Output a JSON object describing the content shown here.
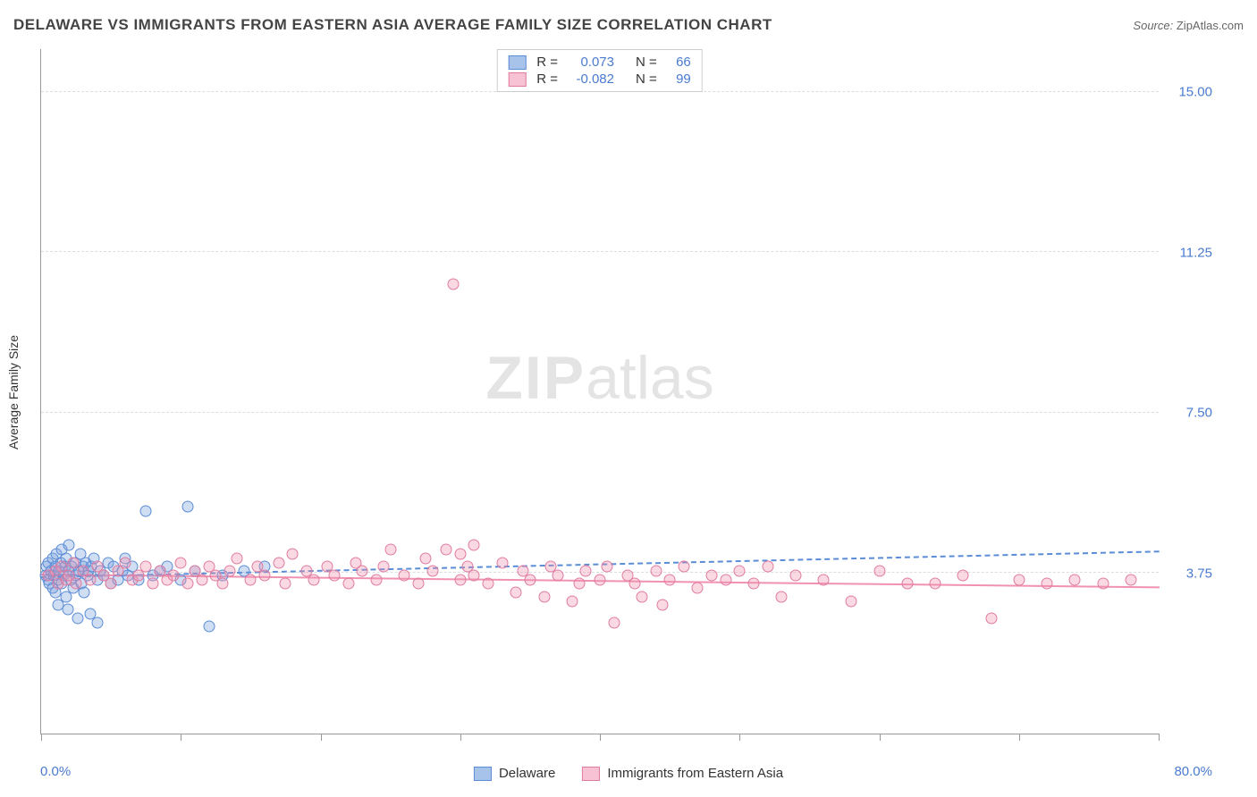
{
  "title": "DELAWARE VS IMMIGRANTS FROM EASTERN ASIA AVERAGE FAMILY SIZE CORRELATION CHART",
  "source_label": "Source:",
  "source_value": "ZipAtlas.com",
  "ylabel": "Average Family Size",
  "watermark_zip": "ZIP",
  "watermark_atlas": "atlas",
  "chart": {
    "type": "scatter",
    "xlim": [
      0,
      80
    ],
    "ylim": [
      0,
      16
    ],
    "xmin_label": "0.0%",
    "xmax_label": "80.0%",
    "yticks": [
      3.75,
      7.5,
      11.25,
      15.0
    ],
    "ytick_labels": [
      "3.75",
      "7.50",
      "11.25",
      "15.00"
    ],
    "xticks": [
      0,
      10,
      20,
      30,
      40,
      50,
      60,
      70,
      80
    ],
    "background_color": "#ffffff",
    "grid_color": "#dddddd",
    "axis_color": "#999999",
    "marker_radius": 6.5,
    "marker_stroke_width": 1.2
  },
  "series": [
    {
      "name": "Delaware",
      "color_fill": "rgba(120,160,220,0.35)",
      "color_stroke": "#5b8cd6",
      "swatch_fill": "#a8c3ea",
      "swatch_border": "#5b8cd6",
      "R": "0.073",
      "N": "66",
      "trend": {
        "y_at_x0": 3.7,
        "y_at_xmax": 4.3,
        "style": "dashed"
      },
      "points": [
        [
          0.3,
          3.7
        ],
        [
          0.4,
          3.9
        ],
        [
          0.5,
          3.6
        ],
        [
          0.5,
          4.0
        ],
        [
          0.6,
          3.5
        ],
        [
          0.7,
          3.8
        ],
        [
          0.8,
          4.1
        ],
        [
          0.8,
          3.4
        ],
        [
          0.9,
          3.7
        ],
        [
          1.0,
          3.9
        ],
        [
          1.0,
          3.3
        ],
        [
          1.1,
          4.2
        ],
        [
          1.2,
          3.6
        ],
        [
          1.2,
          3.0
        ],
        [
          1.3,
          3.8
        ],
        [
          1.4,
          4.0
        ],
        [
          1.5,
          3.5
        ],
        [
          1.5,
          4.3
        ],
        [
          1.6,
          3.7
        ],
        [
          1.7,
          3.9
        ],
        [
          1.8,
          3.2
        ],
        [
          1.8,
          4.1
        ],
        [
          1.9,
          2.9
        ],
        [
          2.0,
          3.8
        ],
        [
          2.0,
          4.4
        ],
        [
          2.1,
          3.6
        ],
        [
          2.2,
          3.9
        ],
        [
          2.3,
          3.4
        ],
        [
          2.4,
          4.0
        ],
        [
          2.5,
          3.7
        ],
        [
          2.6,
          2.7
        ],
        [
          2.7,
          3.8
        ],
        [
          2.8,
          4.2
        ],
        [
          2.9,
          3.5
        ],
        [
          3.0,
          3.9
        ],
        [
          3.1,
          3.3
        ],
        [
          3.2,
          4.0
        ],
        [
          3.3,
          3.7
        ],
        [
          3.4,
          3.8
        ],
        [
          3.5,
          2.8
        ],
        [
          3.6,
          3.9
        ],
        [
          3.8,
          4.1
        ],
        [
          4.0,
          3.6
        ],
        [
          4.0,
          2.6
        ],
        [
          4.2,
          3.8
        ],
        [
          4.5,
          3.7
        ],
        [
          4.8,
          4.0
        ],
        [
          5.0,
          3.5
        ],
        [
          5.2,
          3.9
        ],
        [
          5.5,
          3.6
        ],
        [
          5.8,
          3.8
        ],
        [
          6.0,
          4.1
        ],
        [
          6.2,
          3.7
        ],
        [
          6.5,
          3.9
        ],
        [
          7.0,
          3.6
        ],
        [
          7.5,
          5.2
        ],
        [
          8.0,
          3.7
        ],
        [
          8.5,
          3.8
        ],
        [
          9.0,
          3.9
        ],
        [
          10.0,
          3.6
        ],
        [
          10.5,
          5.3
        ],
        [
          11.0,
          3.8
        ],
        [
          12.0,
          2.5
        ],
        [
          13.0,
          3.7
        ],
        [
          14.5,
          3.8
        ],
        [
          16.0,
          3.9
        ]
      ]
    },
    {
      "name": "Immigrants from Eastern Asia",
      "color_fill": "rgba(240,146,176,0.35)",
      "color_stroke": "#e07ba0",
      "swatch_fill": "#f7c2d3",
      "swatch_border": "#e07ba0",
      "R": "-0.082",
      "N": "99",
      "trend": {
        "y_at_x0": 3.75,
        "y_at_xmax": 3.45,
        "style": "solid"
      },
      "points": [
        [
          0.5,
          3.7
        ],
        [
          1.0,
          3.8
        ],
        [
          1.2,
          3.5
        ],
        [
          1.5,
          3.9
        ],
        [
          1.8,
          3.6
        ],
        [
          2.0,
          3.7
        ],
        [
          2.3,
          4.0
        ],
        [
          2.5,
          3.5
        ],
        [
          3.0,
          3.8
        ],
        [
          3.5,
          3.6
        ],
        [
          4.0,
          3.9
        ],
        [
          4.5,
          3.7
        ],
        [
          5.0,
          3.5
        ],
        [
          5.5,
          3.8
        ],
        [
          6.0,
          4.0
        ],
        [
          6.5,
          3.6
        ],
        [
          7.0,
          3.7
        ],
        [
          7.5,
          3.9
        ],
        [
          8.0,
          3.5
        ],
        [
          8.5,
          3.8
        ],
        [
          9.0,
          3.6
        ],
        [
          9.5,
          3.7
        ],
        [
          10.0,
          4.0
        ],
        [
          10.5,
          3.5
        ],
        [
          11.0,
          3.8
        ],
        [
          11.5,
          3.6
        ],
        [
          12.0,
          3.9
        ],
        [
          12.5,
          3.7
        ],
        [
          13.0,
          3.5
        ],
        [
          13.5,
          3.8
        ],
        [
          14.0,
          4.1
        ],
        [
          15.0,
          3.6
        ],
        [
          15.5,
          3.9
        ],
        [
          16.0,
          3.7
        ],
        [
          17.0,
          4.0
        ],
        [
          17.5,
          3.5
        ],
        [
          18.0,
          4.2
        ],
        [
          19.0,
          3.8
        ],
        [
          19.5,
          3.6
        ],
        [
          20.5,
          3.9
        ],
        [
          21.0,
          3.7
        ],
        [
          22.0,
          3.5
        ],
        [
          22.5,
          4.0
        ],
        [
          23.0,
          3.8
        ],
        [
          24.0,
          3.6
        ],
        [
          24.5,
          3.9
        ],
        [
          25.0,
          4.3
        ],
        [
          26.0,
          3.7
        ],
        [
          27.0,
          3.5
        ],
        [
          27.5,
          4.1
        ],
        [
          28.0,
          3.8
        ],
        [
          29.0,
          4.3
        ],
        [
          29.5,
          10.5
        ],
        [
          30.0,
          3.6
        ],
        [
          30.0,
          4.2
        ],
        [
          30.5,
          3.9
        ],
        [
          31.0,
          3.7
        ],
        [
          31.0,
          4.4
        ],
        [
          32.0,
          3.5
        ],
        [
          33.0,
          4.0
        ],
        [
          34.0,
          3.3
        ],
        [
          34.5,
          3.8
        ],
        [
          35.0,
          3.6
        ],
        [
          36.0,
          3.2
        ],
        [
          36.5,
          3.9
        ],
        [
          37.0,
          3.7
        ],
        [
          38.0,
          3.1
        ],
        [
          38.5,
          3.5
        ],
        [
          39.0,
          3.8
        ],
        [
          40.0,
          3.6
        ],
        [
          40.5,
          3.9
        ],
        [
          41.0,
          2.6
        ],
        [
          42.0,
          3.7
        ],
        [
          42.5,
          3.5
        ],
        [
          43.0,
          3.2
        ],
        [
          44.0,
          3.8
        ],
        [
          44.5,
          3.0
        ],
        [
          45.0,
          3.6
        ],
        [
          46.0,
          3.9
        ],
        [
          47.0,
          3.4
        ],
        [
          48.0,
          3.7
        ],
        [
          49.0,
          3.6
        ],
        [
          50.0,
          3.8
        ],
        [
          51.0,
          3.5
        ],
        [
          52.0,
          3.9
        ],
        [
          53.0,
          3.2
        ],
        [
          54.0,
          3.7
        ],
        [
          56.0,
          3.6
        ],
        [
          58.0,
          3.1
        ],
        [
          60.0,
          3.8
        ],
        [
          62.0,
          3.5
        ],
        [
          64.0,
          3.5
        ],
        [
          66.0,
          3.7
        ],
        [
          68.0,
          2.7
        ],
        [
          70.0,
          3.6
        ],
        [
          72.0,
          3.5
        ],
        [
          74.0,
          3.6
        ],
        [
          76.0,
          3.5
        ],
        [
          78.0,
          3.6
        ]
      ]
    }
  ],
  "stats_box": {
    "R_key": "R =",
    "N_key": "N ="
  },
  "legend": {
    "items": [
      {
        "label": "Delaware",
        "series": 0
      },
      {
        "label": "Immigrants from Eastern Asia",
        "series": 1
      }
    ]
  }
}
